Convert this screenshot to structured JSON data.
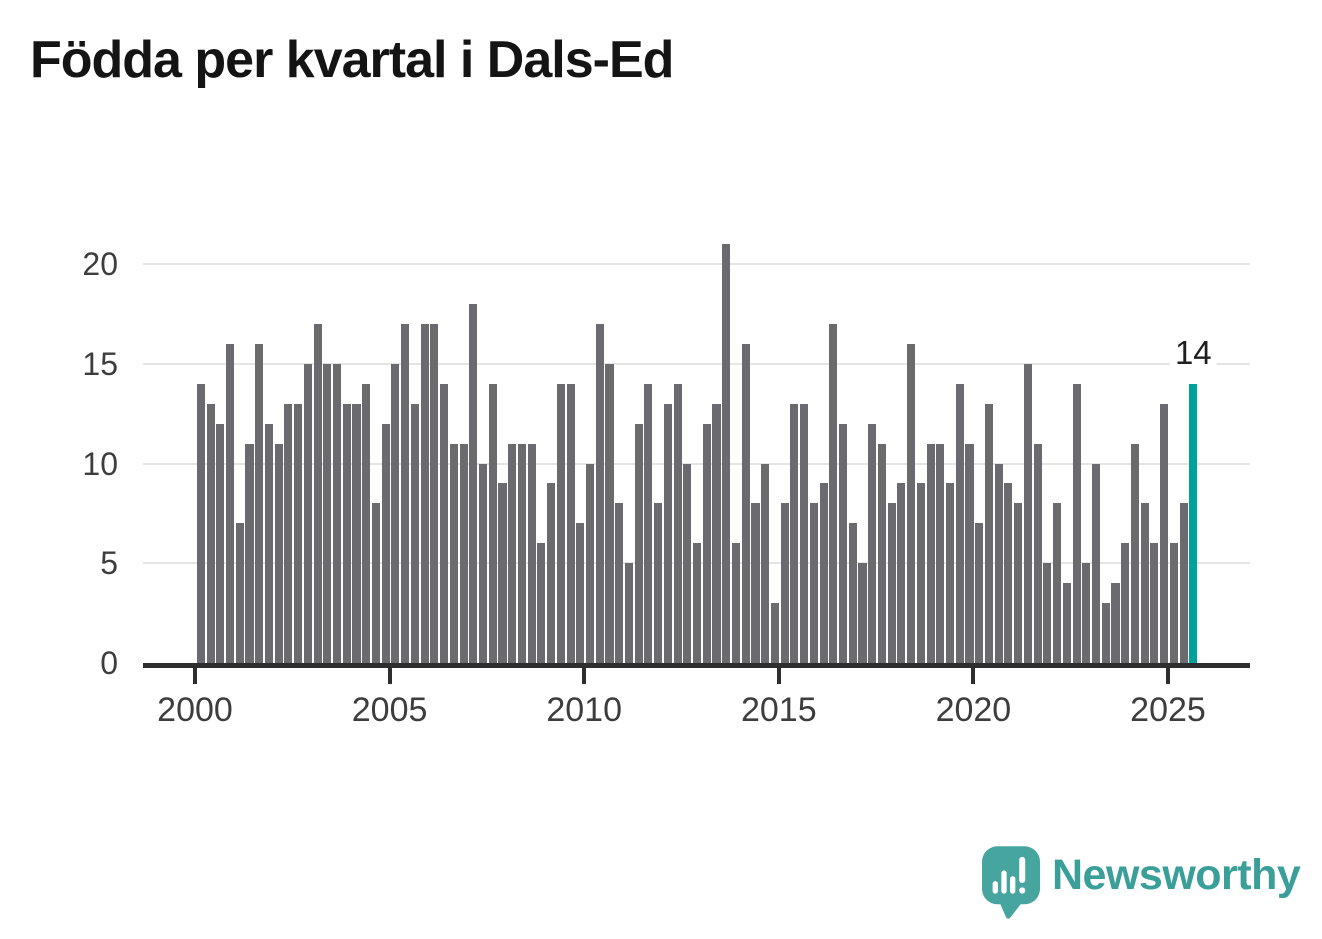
{
  "title": "Födda per kvartal i Dals-Ed",
  "annotation": {
    "label": "14"
  },
  "footer": {
    "brand": "Newsworthy"
  },
  "colors": {
    "bar": "#6a6a6f",
    "highlight": "#00a39c",
    "grid": "#e4e4e4",
    "axis": "#2e2e2e",
    "tick_label": "#3d3d3d",
    "title_text": "#141414",
    "brand_teal": "#3a9e99",
    "brand_bubble": "#46a59f"
  },
  "chart_data": {
    "type": "bar",
    "title": "Födda per kvartal i Dals-Ed",
    "x_start": "2000-Q1",
    "x_end": "2025-Q3",
    "x_tick_labels": [
      "2000",
      "2005",
      "2010",
      "2015",
      "2020",
      "2025"
    ],
    "y_ticks": [
      0,
      5,
      10,
      15,
      20
    ],
    "ylim": [
      0,
      21
    ],
    "grid": "horizontal",
    "legend": "none",
    "bar_unit": "quarter",
    "series": [
      {
        "name": "Födda",
        "values": [
          14,
          13,
          12,
          16,
          7,
          11,
          16,
          12,
          11,
          13,
          13,
          15,
          17,
          15,
          15,
          13,
          13,
          14,
          8,
          12,
          15,
          17,
          13,
          17,
          17,
          14,
          11,
          11,
          18,
          10,
          14,
          9,
          11,
          11,
          11,
          6,
          9,
          14,
          14,
          7,
          10,
          17,
          15,
          8,
          5,
          12,
          14,
          8,
          13,
          14,
          10,
          6,
          12,
          13,
          21,
          6,
          16,
          8,
          10,
          3,
          8,
          13,
          13,
          8,
          9,
          17,
          12,
          7,
          5,
          12,
          11,
          8,
          9,
          16,
          9,
          11,
          11,
          9,
          14,
          11,
          7,
          13,
          10,
          9,
          8,
          15,
          11,
          5,
          8,
          4,
          14,
          5,
          10,
          3,
          4,
          6,
          11,
          8,
          6,
          13,
          6,
          8,
          14
        ]
      }
    ],
    "highlight_last": true,
    "highlight_value_label": "14"
  }
}
